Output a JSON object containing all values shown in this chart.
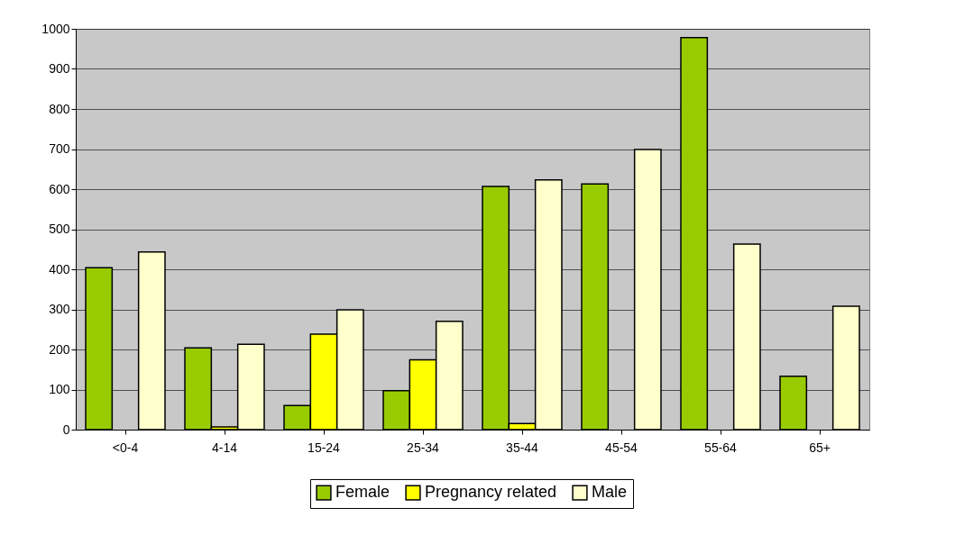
{
  "chart_data": {
    "type": "bar",
    "categories": [
      "<0-4",
      "4-14",
      "15-24",
      "25-34",
      "35-44",
      "45-54",
      "55-64",
      "65+"
    ],
    "series": [
      {
        "name": "Female",
        "color": "#99cc00",
        "values": [
          404,
          204,
          60,
          97,
          607,
          613,
          978,
          133
        ]
      },
      {
        "name": "Pregnancy related",
        "color": "#ffff00",
        "values": [
          null,
          7,
          238,
          174,
          15,
          null,
          null,
          null
        ]
      },
      {
        "name": "Male",
        "color": "#ffffcc",
        "values": [
          443,
          213,
          299,
          270,
          623,
          699,
          463,
          308
        ]
      }
    ],
    "ylim": [
      0,
      1000
    ],
    "yticks": [
      0,
      100,
      200,
      300,
      400,
      500,
      600,
      700,
      800,
      900,
      1000
    ],
    "grid": "y",
    "legend": "bottom"
  }
}
